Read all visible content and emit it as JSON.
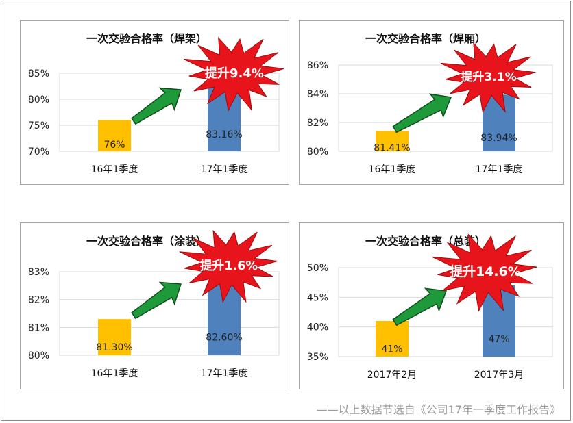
{
  "colors": {
    "bar_2016": "#FFC000",
    "bar_2017": "#4F81BD",
    "burst": "#E8141B",
    "burst_text": "#FFFFFF",
    "arrow": "#1E9A3A"
  },
  "chart_data": [
    {
      "type": "bar",
      "title": "一次交验合格率（焊架）",
      "categories": [
        "16年1季度",
        "17年1季度"
      ],
      "values": [
        76,
        83.16
      ],
      "data_labels": [
        "76%",
        "83.16%"
      ],
      "ylim": [
        70,
        85
      ],
      "yticks": [
        "70%",
        "75%",
        "80%",
        "85%"
      ],
      "grid": true,
      "callout": "提升9.4%"
    },
    {
      "type": "bar",
      "title": "一次交验合格率（焊厢）",
      "categories": [
        "16年1季度",
        "17年1季度"
      ],
      "values": [
        81.41,
        83.94
      ],
      "data_labels": [
        "81.41%",
        "83.94%"
      ],
      "ylim": [
        80,
        86
      ],
      "yticks": [
        "80%",
        "82%",
        "84%",
        "86%"
      ],
      "grid": true,
      "callout": "提升3.1%"
    },
    {
      "type": "bar",
      "title": "一次交验合格率（涂装）",
      "categories": [
        "16年1季度",
        "17年1季度"
      ],
      "values": [
        81.3,
        82.6
      ],
      "data_labels": [
        "81.30%",
        "82.60%"
      ],
      "ylim": [
        80,
        83
      ],
      "yticks": [
        "80%",
        "81%",
        "82%",
        "83%"
      ],
      "grid": true,
      "callout": "提升1.6%"
    },
    {
      "type": "bar",
      "title": "一次交验合格率（总装）",
      "categories": [
        "2017年2月",
        "2017年3月"
      ],
      "values": [
        41,
        47
      ],
      "data_labels": [
        "41%",
        "47%"
      ],
      "ylim": [
        35,
        50
      ],
      "yticks": [
        "35%",
        "40%",
        "45%",
        "50%"
      ],
      "grid": true,
      "callout": "提升14.6%"
    }
  ],
  "footer": "——以上数据节选自《公司17年一季度工作报告》"
}
